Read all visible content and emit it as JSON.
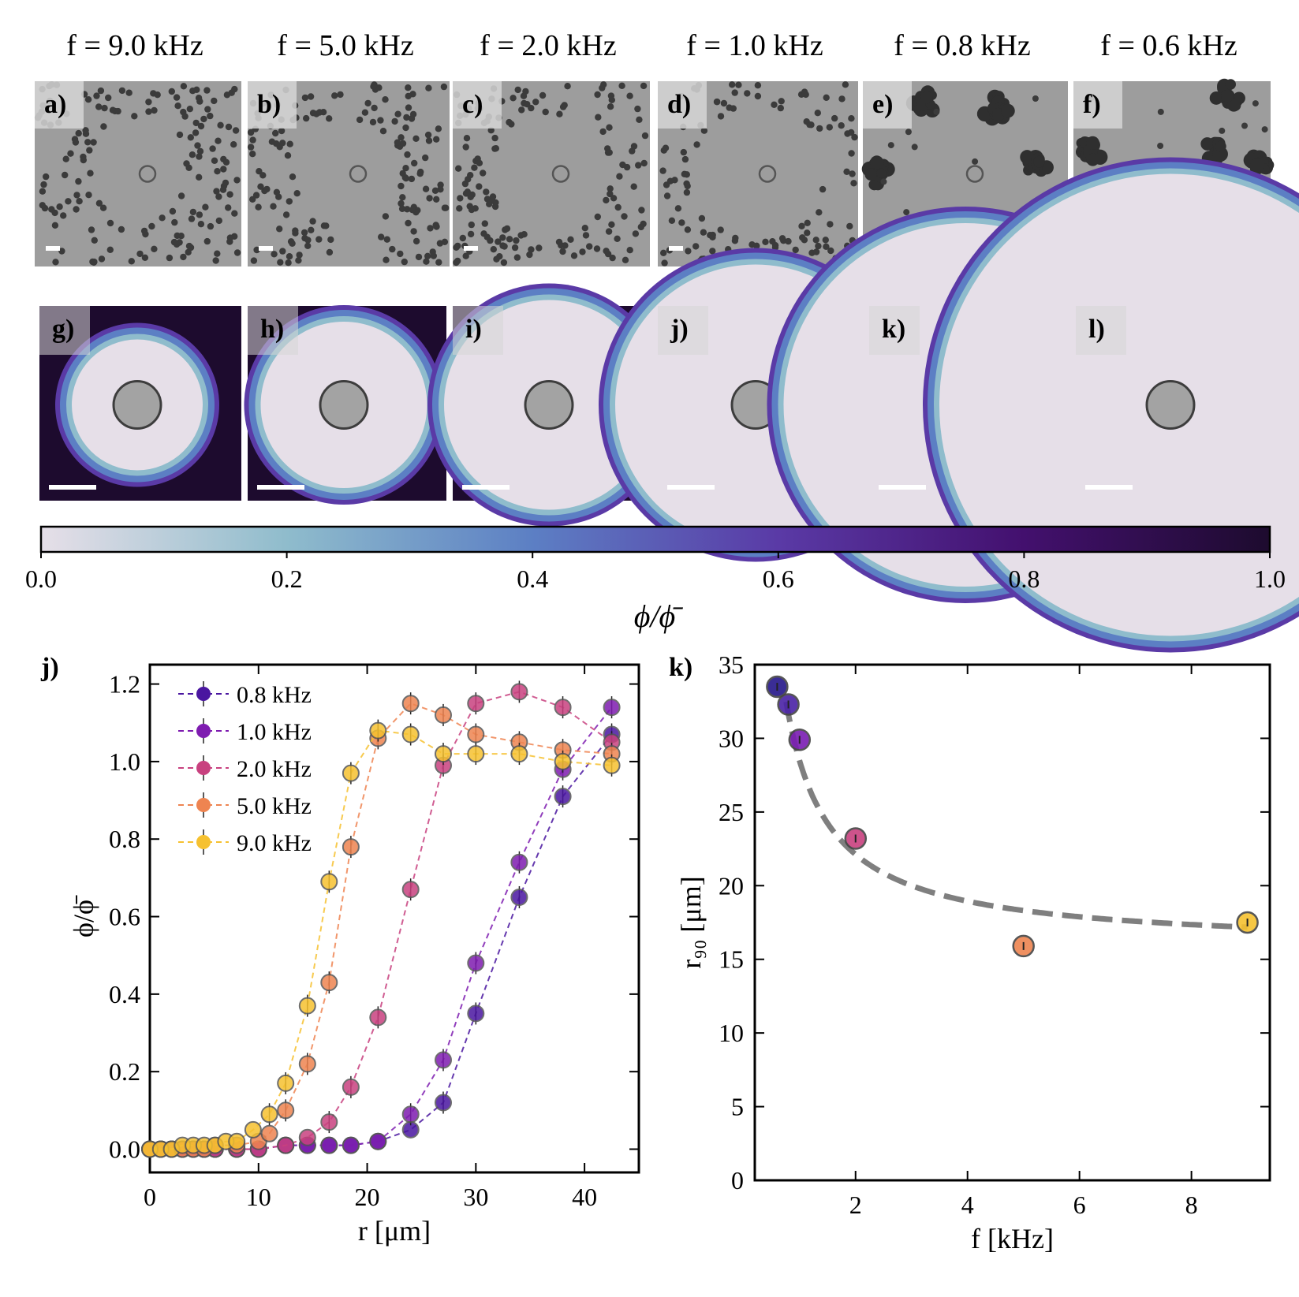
{
  "figure": {
    "panels_top": [
      {
        "letter": "a)",
        "freq": "f = 9.0 kHz"
      },
      {
        "letter": "b)",
        "freq": "f = 5.0 kHz"
      },
      {
        "letter": "c)",
        "freq": "f = 2.0 kHz"
      },
      {
        "letter": "d)",
        "freq": "f = 1.0 kHz"
      },
      {
        "letter": "e)",
        "freq": "f = 0.8 kHz"
      },
      {
        "letter": "f)",
        "freq": "f = 0.6 kHz"
      }
    ],
    "panels_maps": [
      "g)",
      "h)",
      "i)",
      "j)",
      "k)",
      "l)"
    ],
    "map_core_fraction": [
      0.36,
      0.45,
      0.56,
      0.74,
      0.95,
      1.2
    ],
    "colorbar": {
      "ticks": [
        "0.0",
        "0.2",
        "0.4",
        "0.6",
        "0.8",
        "1.0"
      ],
      "label": "ϕ/ϕ̄",
      "colors": [
        "#e6dfe8",
        "#8fbccc",
        "#5c7fc4",
        "#5a3aa6",
        "#43106e",
        "#1d0b2e"
      ]
    }
  },
  "chart_data": [
    {
      "type": "line",
      "panel_label": "j)",
      "xlabel": "r [μm]",
      "ylabel": "ϕ/ϕ̄",
      "xlim": [
        0,
        45
      ],
      "ylim": [
        -0.06,
        1.25
      ],
      "xticks": [
        "0",
        "10",
        "20",
        "30",
        "40"
      ],
      "yticks": [
        "0.0",
        "0.2",
        "0.4",
        "0.6",
        "0.8",
        "1.0",
        "1.2"
      ],
      "legend_position": "top-left",
      "series": [
        {
          "name": "0.8 kHz",
          "color": "#4a16a0",
          "x": [
            0,
            1,
            2,
            3,
            4,
            5,
            6,
            8,
            10,
            12.5,
            14.5,
            16.5,
            18.5,
            21,
            24,
            27,
            30,
            34,
            38,
            42.5
          ],
          "y": [
            0.0,
            0.0,
            0.0,
            0.0,
            0.0,
            0.0,
            0.0,
            0.0,
            0.0,
            0.01,
            0.01,
            0.01,
            0.01,
            0.02,
            0.05,
            0.12,
            0.35,
            0.65,
            0.91,
            1.07
          ]
        },
        {
          "name": "1.0 kHz",
          "color": "#7e1cb0",
          "x": [
            0,
            1,
            2,
            3,
            4,
            5,
            6,
            8,
            10,
            12.5,
            14.5,
            16.5,
            18.5,
            21,
            24,
            27,
            30,
            34,
            38,
            42.5
          ],
          "y": [
            0.0,
            0.0,
            0.0,
            0.0,
            0.0,
            0.0,
            0.0,
            0.0,
            0.0,
            0.01,
            0.01,
            0.01,
            0.01,
            0.02,
            0.09,
            0.23,
            0.48,
            0.74,
            0.98,
            1.14
          ]
        },
        {
          "name": "2.0 kHz",
          "color": "#c8417f",
          "x": [
            0,
            1,
            2,
            3,
            4,
            5,
            6,
            8,
            10,
            12.5,
            14.5,
            16.5,
            18.5,
            21,
            24,
            27,
            30,
            34,
            38,
            42.5
          ],
          "y": [
            0.0,
            0.0,
            0.0,
            0.0,
            0.0,
            0.0,
            0.0,
            0.0,
            0.0,
            0.01,
            0.03,
            0.07,
            0.16,
            0.34,
            0.67,
            0.99,
            1.15,
            1.18,
            1.14,
            1.05
          ]
        },
        {
          "name": "5.0 kHz",
          "color": "#ee8451",
          "x": [
            0,
            1,
            2,
            3,
            4,
            5,
            6,
            8,
            10,
            11,
            12.5,
            14.5,
            16.5,
            18.5,
            21,
            24,
            27,
            30,
            34,
            38,
            42.5
          ],
          "y": [
            0.0,
            0.0,
            0.0,
            0.0,
            0.0,
            0.0,
            0.01,
            0.01,
            0.02,
            0.04,
            0.1,
            0.22,
            0.43,
            0.78,
            1.06,
            1.15,
            1.12,
            1.07,
            1.05,
            1.03,
            1.02
          ]
        },
        {
          "name": "9.0 kHz",
          "color": "#f6c130",
          "x": [
            0,
            1,
            2,
            3,
            4,
            5,
            6,
            7,
            8,
            9.5,
            11,
            12.5,
            14.5,
            16.5,
            18.5,
            21,
            24,
            27,
            30,
            34,
            38,
            42.5
          ],
          "y": [
            0.0,
            0.0,
            0.0,
            0.01,
            0.01,
            0.01,
            0.01,
            0.02,
            0.02,
            0.05,
            0.09,
            0.17,
            0.37,
            0.69,
            0.97,
            1.08,
            1.07,
            1.02,
            1.02,
            1.02,
            1.0,
            0.99
          ]
        }
      ]
    },
    {
      "type": "scatter",
      "panel_label": "k)",
      "xlabel": "f [kHz]",
      "ylabel": "r₉₀ [μm]",
      "xlim": [
        0.2,
        9.4
      ],
      "ylim": [
        0,
        35
      ],
      "xticks": [
        "2",
        "4",
        "6",
        "8"
      ],
      "yticks": [
        "0",
        "5",
        "10",
        "15",
        "20",
        "25",
        "30",
        "35"
      ],
      "points": [
        {
          "x": 0.6,
          "y": 33.5,
          "color": "#25178a"
        },
        {
          "x": 0.8,
          "y": 32.3,
          "color": "#4a22a6"
        },
        {
          "x": 1.0,
          "y": 29.9,
          "color": "#7a1cb2"
        },
        {
          "x": 2.0,
          "y": 23.2,
          "color": "#c8417f"
        },
        {
          "x": 5.0,
          "y": 15.9,
          "color": "#ee8451"
        },
        {
          "x": 9.0,
          "y": 17.5,
          "color": "#f6c130"
        }
      ],
      "fit": {
        "a": 15.77,
        "b": 12.7,
        "x_start": 0.76,
        "x_end": 9.0
      }
    }
  ]
}
